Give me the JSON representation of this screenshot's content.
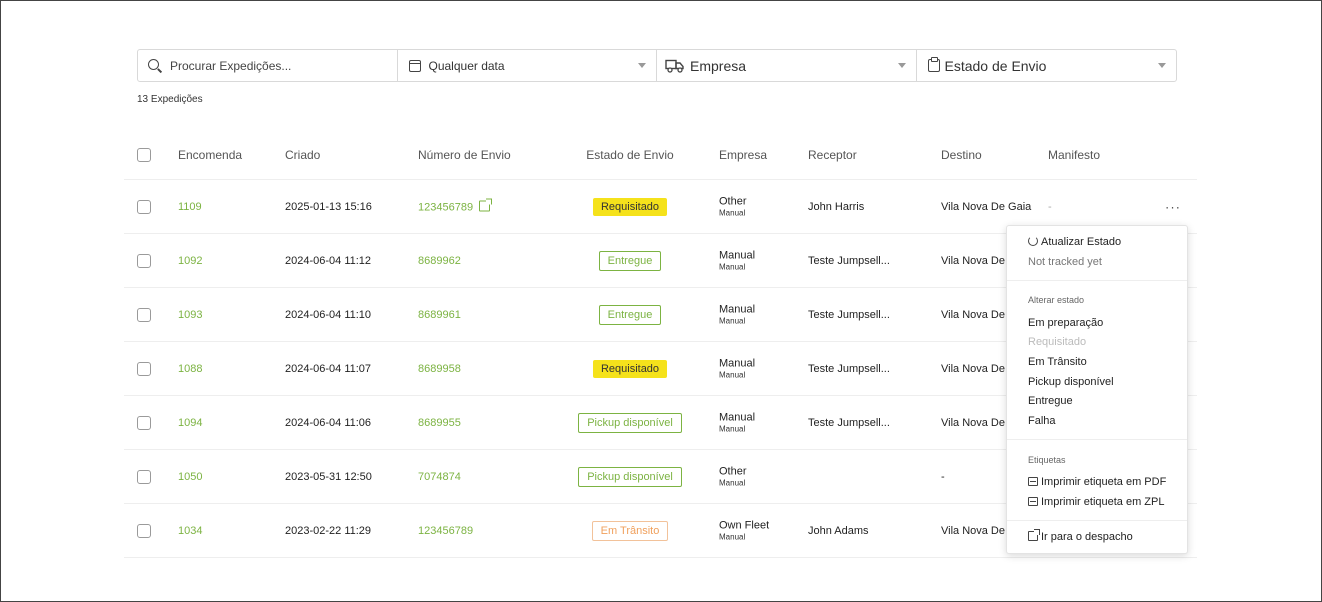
{
  "filters": {
    "search_placeholder": "Procurar Expedições...",
    "date_label": "Qualquer data",
    "company_label": "Empresa",
    "state_label": "Estado de Envio"
  },
  "summary": {
    "count_text": "13 Expedições"
  },
  "table": {
    "headers": {
      "encomenda": "Encomenda",
      "criado": "Criado",
      "numero": "Número de Envio",
      "estado": "Estado de Envio",
      "empresa": "Empresa",
      "receptor": "Receptor",
      "destino": "Destino",
      "manifesto": "Manifesto"
    },
    "rows": [
      {
        "order": "1109",
        "created": "2025-01-13 15:16",
        "tracking": "123456789",
        "status": "Requisitado",
        "status_style": "requested",
        "company": "Other",
        "company_sub": "Manual",
        "receiver": "John Harris",
        "destination": "Vila Nova De Gaia",
        "manifest": "-",
        "more": "···"
      },
      {
        "order": "1092",
        "created": "2024-06-04 11:12",
        "tracking": "8689962",
        "status": "Entregue",
        "status_style": "delivered",
        "company": "Manual",
        "company_sub": "Manual",
        "receiver": "Teste Jumpsell...",
        "destination": "Vila Nova De",
        "manifest": "",
        "more": ""
      },
      {
        "order": "1093",
        "created": "2024-06-04 11:10",
        "tracking": "8689961",
        "status": "Entregue",
        "status_style": "delivered",
        "company": "Manual",
        "company_sub": "Manual",
        "receiver": "Teste Jumpsell...",
        "destination": "Vila Nova De",
        "manifest": "",
        "more": ""
      },
      {
        "order": "1088",
        "created": "2024-06-04 11:07",
        "tracking": "8689958",
        "status": "Requisitado",
        "status_style": "requested",
        "company": "Manual",
        "company_sub": "Manual",
        "receiver": "Teste Jumpsell...",
        "destination": "Vila Nova De",
        "manifest": "",
        "more": ""
      },
      {
        "order": "1094",
        "created": "2024-06-04 11:06",
        "tracking": "8689955",
        "status": "Pickup disponível",
        "status_style": "delivered",
        "company": "Manual",
        "company_sub": "Manual",
        "receiver": "Teste Jumpsell...",
        "destination": "Vila Nova De",
        "manifest": "",
        "more": ""
      },
      {
        "order": "1050",
        "created": "2023-05-31 12:50",
        "tracking": "7074874",
        "status": "Pickup disponível",
        "status_style": "delivered",
        "company": "Other",
        "company_sub": "Manual",
        "receiver": "",
        "destination": "-",
        "manifest": "",
        "more": ""
      },
      {
        "order": "1034",
        "created": "2023-02-22 11:29",
        "tracking": "123456789",
        "status": "Em Trânsito",
        "status_style": "transit",
        "company": "Own Fleet",
        "company_sub": "Manual",
        "receiver": "John Adams",
        "destination": "Vila Nova De",
        "manifest": "",
        "more": ""
      }
    ]
  },
  "menu": {
    "refresh": "Atualizar Estado",
    "not_tracked": "Not tracked yet",
    "change_state_header": "Alterar estado",
    "states": [
      "Em preparação",
      "Requisitado",
      "Em Trânsito",
      "Pickup disponível",
      "Entregue",
      "Falha"
    ],
    "disabled_state": "Requisitado",
    "labels_header": "Etiquetas",
    "print_pdf": "Imprimir etiqueta em PDF",
    "print_zpl": "Imprimir etiqueta em ZPL",
    "go_dispatch": "Ir para o despacho"
  },
  "colors": {
    "accent_green": "#7cb342",
    "requested_yellow": "#f5e21b",
    "transit_orange": "#f0a05c"
  }
}
